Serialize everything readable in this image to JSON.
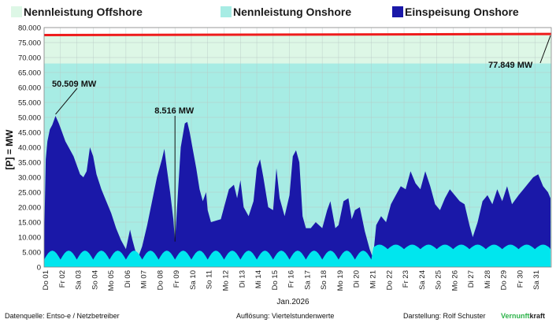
{
  "chart_data": {
    "type": "area",
    "legend": [
      {
        "key": "offshore",
        "label": "Nennleistung Offshore",
        "color": "#ddf7e6"
      },
      {
        "key": "onshore_capacity",
        "label": "Nennleistung Onshore",
        "color": "#a7ece4"
      },
      {
        "key": "feed_in",
        "label": "Einspeisung Onshore",
        "color": "#1a18a8"
      }
    ],
    "legend_placement": "top",
    "ylabel": "[P] = MW",
    "xlabel": "Jan.2026",
    "ylim": [
      0,
      80000
    ],
    "y_ticks": [
      "0",
      "5.000",
      "10.000",
      "15.000",
      "20.000",
      "25.000",
      "30.000",
      "35.000",
      "40.000",
      "45.000",
      "50.000",
      "55.000",
      "60.000",
      "65.000",
      "70.000",
      "75.000",
      "80.000"
    ],
    "grid": true,
    "days": [
      "Do 01",
      "Fr 02",
      "Sa 03",
      "So 04",
      "Mo 05",
      "Di 06",
      "Mi 07",
      "Do 08",
      "Fr 09",
      "Sa 10",
      "So 11",
      "Mo 12",
      "Di 13",
      "Mi 14",
      "Do 15",
      "Fr 16",
      "Sa 17",
      "So 18",
      "Mo 19",
      "Di 20",
      "Mi 21",
      "Do 22",
      "Fr 23",
      "Sa 24",
      "So 25",
      "Mo 26",
      "Di 27",
      "Mi 28",
      "Do 29",
      "Fr 30",
      "Sa 31"
    ],
    "capacity_total_mw": 77849,
    "capacity_onshore_mw": 68000,
    "capacity_line_color": "#ee1c1c",
    "feed_in_color": "#1a18a8",
    "solar_color": "#00e6ee",
    "feed_in_points": [
      [
        0.0,
        8000
      ],
      [
        0.1,
        36000
      ],
      [
        0.2,
        42000
      ],
      [
        0.35,
        46000
      ],
      [
        0.5,
        47500
      ],
      [
        0.7,
        50509
      ],
      [
        0.9,
        48000
      ],
      [
        1.1,
        45000
      ],
      [
        1.3,
        42000
      ],
      [
        1.5,
        40000
      ],
      [
        1.8,
        37000
      ],
      [
        2.0,
        34000
      ],
      [
        2.2,
        31000
      ],
      [
        2.4,
        30000
      ],
      [
        2.6,
        32000
      ],
      [
        2.8,
        40000
      ],
      [
        3.0,
        37000
      ],
      [
        3.2,
        31000
      ],
      [
        3.5,
        26000
      ],
      [
        3.8,
        22000
      ],
      [
        4.1,
        18000
      ],
      [
        4.4,
        13000
      ],
      [
        4.7,
        9000
      ],
      [
        5.0,
        6000
      ],
      [
        5.25,
        12500
      ],
      [
        5.4,
        9000
      ],
      [
        5.6,
        5000
      ],
      [
        5.8,
        4000
      ],
      [
        6.0,
        7000
      ],
      [
        6.3,
        14000
      ],
      [
        6.6,
        22000
      ],
      [
        6.9,
        30000
      ],
      [
        7.2,
        36000
      ],
      [
        7.35,
        39500
      ],
      [
        7.5,
        33000
      ],
      [
        7.7,
        25000
      ],
      [
        7.9,
        16000
      ],
      [
        8.0,
        8516
      ],
      [
        8.15,
        22000
      ],
      [
        8.35,
        40000
      ],
      [
        8.6,
        48000
      ],
      [
        8.75,
        48500
      ],
      [
        8.9,
        45000
      ],
      [
        9.1,
        39000
      ],
      [
        9.3,
        33000
      ],
      [
        9.5,
        26000
      ],
      [
        9.7,
        22000
      ],
      [
        9.9,
        25000
      ],
      [
        10.0,
        19000
      ],
      [
        10.2,
        15000
      ],
      [
        10.5,
        15500
      ],
      [
        10.8,
        16000
      ],
      [
        11.0,
        20000
      ],
      [
        11.3,
        26000
      ],
      [
        11.6,
        27500
      ],
      [
        11.8,
        23000
      ],
      [
        12.0,
        29000
      ],
      [
        12.2,
        20000
      ],
      [
        12.5,
        17000
      ],
      [
        12.8,
        22000
      ],
      [
        13.0,
        33000
      ],
      [
        13.2,
        36000
      ],
      [
        13.4,
        30000
      ],
      [
        13.7,
        20000
      ],
      [
        14.0,
        19000
      ],
      [
        14.2,
        33000
      ],
      [
        14.4,
        23000
      ],
      [
        14.7,
        17000
      ],
      [
        15.0,
        24000
      ],
      [
        15.2,
        37000
      ],
      [
        15.4,
        39000
      ],
      [
        15.6,
        35000
      ],
      [
        15.8,
        17000
      ],
      [
        16.0,
        13000
      ],
      [
        16.3,
        13000
      ],
      [
        16.6,
        15000
      ],
      [
        17.0,
        13000
      ],
      [
        17.3,
        19000
      ],
      [
        17.5,
        22000
      ],
      [
        17.8,
        13000
      ],
      [
        18.0,
        14000
      ],
      [
        18.3,
        22000
      ],
      [
        18.6,
        23000
      ],
      [
        18.8,
        16000
      ],
      [
        19.0,
        19000
      ],
      [
        19.3,
        20000
      ],
      [
        19.6,
        12000
      ],
      [
        19.9,
        6000
      ],
      [
        20.1,
        3000
      ],
      [
        20.3,
        14000
      ],
      [
        20.6,
        17000
      ],
      [
        20.9,
        15000
      ],
      [
        21.2,
        21000
      ],
      [
        21.5,
        24000
      ],
      [
        21.8,
        27000
      ],
      [
        22.1,
        26000
      ],
      [
        22.4,
        32000
      ],
      [
        22.7,
        28000
      ],
      [
        23.0,
        26000
      ],
      [
        23.3,
        32000
      ],
      [
        23.6,
        27000
      ],
      [
        23.9,
        21000
      ],
      [
        24.2,
        19000
      ],
      [
        24.5,
        23000
      ],
      [
        24.8,
        26000
      ],
      [
        25.1,
        24000
      ],
      [
        25.4,
        22000
      ],
      [
        25.7,
        21000
      ],
      [
        26.0,
        14000
      ],
      [
        26.2,
        10000
      ],
      [
        26.5,
        15000
      ],
      [
        26.8,
        22000
      ],
      [
        27.1,
        24000
      ],
      [
        27.4,
        21000
      ],
      [
        27.7,
        26000
      ],
      [
        28.0,
        22000
      ],
      [
        28.3,
        27000
      ],
      [
        28.6,
        21000
      ],
      [
        29.0,
        24000
      ],
      [
        29.3,
        26000
      ],
      [
        29.6,
        28000
      ],
      [
        29.9,
        30000
      ],
      [
        30.2,
        31000
      ],
      [
        30.5,
        27000
      ],
      [
        30.8,
        25000
      ],
      [
        30.95,
        23000
      ]
    ],
    "annotations": [
      {
        "text": "50.509 MW",
        "x": 0.7,
        "y": 50509
      },
      {
        "text": "8.516 MW",
        "x": 8.0,
        "y": 8516
      },
      {
        "text": "77.849 MW",
        "x": 31.0,
        "y": 77849
      }
    ]
  },
  "footer": {
    "source": "Datenquelle:  Entso-e  / Netzbetreiber",
    "resolution": "Auflösung: Viertelstundenwerte",
    "author": "Darstellung:  Rolf Schuster",
    "brand_green": "Vernunft",
    "brand_black": "kraft"
  }
}
